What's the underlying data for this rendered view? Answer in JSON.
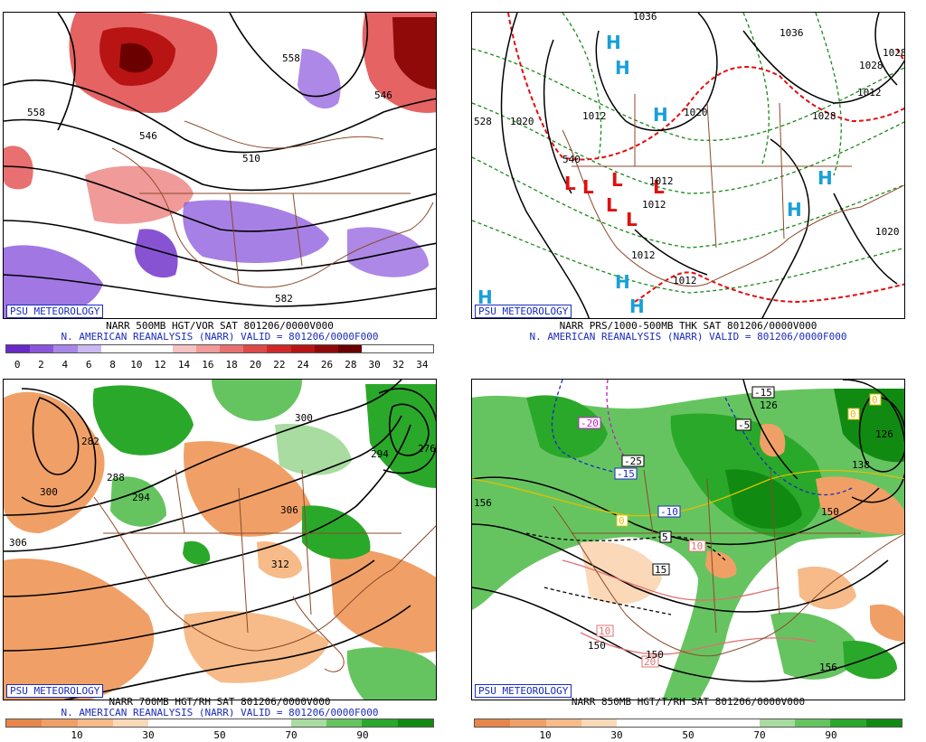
{
  "panels": [
    {
      "badge": "PSU METEOROLOGY",
      "title": "NARR 500MB HGT/VOR SAT 801206/0000V000",
      "subtitle": "N. AMERICAN REANALYSIS (NARR) VALID = 801206/0000F000",
      "colorbar": {
        "colors": [
          "#6a28c8",
          "#8a55dc",
          "#a886e8",
          "#cbb8f2",
          "#ffffff",
          "#ffffff",
          "#ffffff",
          "#f6c2c2",
          "#f09a9a",
          "#e87070",
          "#e04848",
          "#d02828",
          "#b81414",
          "#900a0a",
          "#6a0000",
          "#ffffff",
          "#ffffff",
          "#ffffff"
        ],
        "ticks": [
          "0",
          "2",
          "4",
          "6",
          "8",
          "10",
          "12",
          "14",
          "16",
          "18",
          "20",
          "22",
          "24",
          "26",
          "28",
          "30",
          "32",
          "34"
        ]
      },
      "labels": [
        "558",
        "546",
        "558",
        "510",
        "546",
        "582"
      ]
    },
    {
      "badge": "PSU METEOROLOGY",
      "title": "NARR PRS/1000-500MB THK SAT 801206/0000V000",
      "subtitle": "N. AMERICAN REANALYSIS (NARR) VALID = 801206/0000F000",
      "labels": [
        "1036",
        "1036",
        "1020",
        "1012",
        "1020",
        "1020",
        "1028",
        "1012",
        "1012",
        "1012",
        "1012",
        "1020",
        "540",
        "528",
        "1028",
        "1028"
      ],
      "highs": [
        "H",
        "H",
        "H",
        "H",
        "H",
        "H",
        "H",
        "H"
      ],
      "lows": [
        "L",
        "L",
        "L",
        "L",
        "L",
        "L",
        "L"
      ]
    },
    {
      "badge": "PSU METEOROLOGY",
      "title": "NARR 700MB HGT/RH SAT 801206/0000V000",
      "subtitle": "N. AMERICAN REANALYSIS (NARR) VALID = 801206/0000F000",
      "colorbar": {
        "colors": [
          "#e8864a",
          "#f0a066",
          "#f6bb88",
          "#fad8b8",
          "#ffffff",
          "#ffffff",
          "#ffffff",
          "#ffffff",
          "#a8dca0",
          "#66c460",
          "#2aa82a",
          "#118a11"
        ],
        "ticks": [
          "10",
          "30",
          "50",
          "70",
          "90"
        ]
      },
      "labels": [
        "282",
        "288",
        "300",
        "294",
        "306",
        "300",
        "312",
        "276",
        "294",
        "306"
      ]
    },
    {
      "badge": "PSU METEOROLOGY",
      "title": "NARR 850MB HGT/T/RH SAT 801206/0000V000",
      "colorbar": {
        "colors": [
          "#e8864a",
          "#f0a066",
          "#f6bb88",
          "#fad8b8",
          "#ffffff",
          "#ffffff",
          "#ffffff",
          "#ffffff",
          "#a8dca0",
          "#66c460",
          "#2aa82a",
          "#118a11"
        ],
        "ticks": [
          "10",
          "30",
          "50",
          "70",
          "90"
        ]
      },
      "temps": [
        "-20",
        "-15",
        "-25",
        "-15",
        "-10",
        "-5",
        "0",
        "5",
        "10",
        "15",
        "20",
        "10",
        "0",
        "0",
        "-5"
      ],
      "labels": [
        "126",
        "138",
        "150",
        "150",
        "156",
        "150",
        "156",
        "126"
      ]
    }
  ]
}
